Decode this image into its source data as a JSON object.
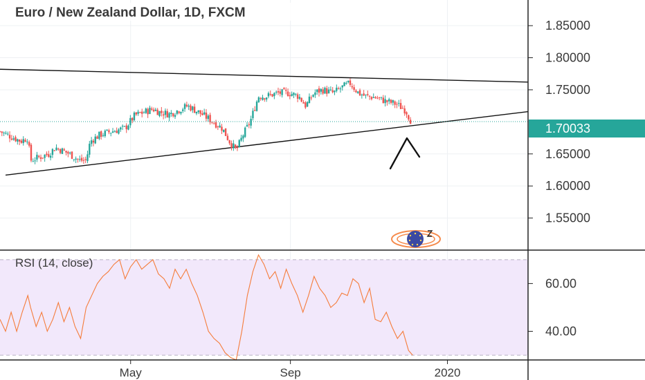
{
  "chart_data": [
    {
      "type": "candlestick",
      "title": "Euro / New Zealand Dollar, 1D, FXCM",
      "yticks": [
        "1.85000",
        "1.80000",
        "1.75000",
        "1.65000",
        "1.60000",
        "1.55000"
      ],
      "yticks_values": [
        1.85,
        1.8,
        1.75,
        1.65,
        1.6,
        1.55
      ],
      "ylim": [
        1.5,
        1.89
      ],
      "last_price": "1.70033",
      "last_price_value": 1.70033,
      "xticks": [
        "May",
        "Sep",
        "2020"
      ],
      "xticks_days": [
        94,
        209,
        322
      ],
      "xlim_days": [
        0,
        380
      ],
      "up_color": "#26a69a",
      "down_color": "#ef5350",
      "trendlines": [
        {
          "from": [
            0,
            1.782
          ],
          "to": [
            380,
            1.762
          ]
        },
        {
          "from": [
            4,
            1.617
          ],
          "to": [
            380,
            1.716
          ]
        }
      ],
      "close_path": [
        [
          0,
          1.685
        ],
        [
          15,
          1.67
        ],
        [
          20,
          1.675
        ],
        [
          22,
          1.64
        ],
        [
          35,
          1.65
        ],
        [
          40,
          1.66
        ],
        [
          50,
          1.65
        ],
        [
          57,
          1.64
        ],
        [
          62,
          1.64
        ],
        [
          65,
          1.67
        ],
        [
          72,
          1.68
        ],
        [
          80,
          1.685
        ],
        [
          90,
          1.69
        ],
        [
          97,
          1.71
        ],
        [
          110,
          1.72
        ],
        [
          115,
          1.715
        ],
        [
          122,
          1.712
        ],
        [
          130,
          1.72
        ],
        [
          135,
          1.725
        ],
        [
          143,
          1.715
        ],
        [
          150,
          1.705
        ],
        [
          160,
          1.69
        ],
        [
          165,
          1.67
        ],
        [
          170,
          1.655
        ],
        [
          175,
          1.68
        ],
        [
          180,
          1.7
        ],
        [
          186,
          1.74
        ],
        [
          192,
          1.74
        ],
        [
          200,
          1.745
        ],
        [
          208,
          1.745
        ],
        [
          215,
          1.74
        ],
        [
          220,
          1.725
        ],
        [
          226,
          1.745
        ],
        [
          232,
          1.75
        ],
        [
          240,
          1.745
        ],
        [
          247,
          1.755
        ],
        [
          252,
          1.76
        ],
        [
          258,
          1.745
        ],
        [
          263,
          1.74
        ],
        [
          270,
          1.738
        ],
        [
          278,
          1.732
        ],
        [
          285,
          1.728
        ],
        [
          292,
          1.718
        ],
        [
          296,
          1.7
        ]
      ]
    },
    {
      "type": "line",
      "title": "RSI (14, close)",
      "yticks": [
        "60.00",
        "40.00"
      ],
      "yticks_values": [
        60,
        40
      ],
      "ylim": [
        28,
        74
      ],
      "band": [
        30,
        70
      ],
      "line_color": "#f57c3a",
      "band_color": "#f2e8fb",
      "xlim_days": [
        0,
        380
      ],
      "values": [
        [
          0,
          45
        ],
        [
          4,
          40
        ],
        [
          8,
          48
        ],
        [
          12,
          40
        ],
        [
          16,
          48
        ],
        [
          20,
          55
        ],
        [
          22,
          50
        ],
        [
          26,
          42
        ],
        [
          30,
          48
        ],
        [
          34,
          40
        ],
        [
          38,
          45
        ],
        [
          42,
          52
        ],
        [
          46,
          44
        ],
        [
          50,
          50
        ],
        [
          54,
          42
        ],
        [
          58,
          37
        ],
        [
          62,
          50
        ],
        [
          66,
          55
        ],
        [
          70,
          60
        ],
        [
          74,
          63
        ],
        [
          78,
          65
        ],
        [
          82,
          68
        ],
        [
          86,
          70
        ],
        [
          90,
          62
        ],
        [
          94,
          67
        ],
        [
          98,
          70
        ],
        [
          102,
          66
        ],
        [
          106,
          68
        ],
        [
          110,
          70
        ],
        [
          114,
          64
        ],
        [
          118,
          62
        ],
        [
          122,
          58
        ],
        [
          126,
          66
        ],
        [
          130,
          62
        ],
        [
          134,
          66
        ],
        [
          138,
          60
        ],
        [
          142,
          55
        ],
        [
          146,
          48
        ],
        [
          150,
          40
        ],
        [
          154,
          37
        ],
        [
          158,
          35
        ],
        [
          162,
          31
        ],
        [
          166,
          29
        ],
        [
          170,
          28
        ],
        [
          174,
          40
        ],
        [
          178,
          55
        ],
        [
          182,
          65
        ],
        [
          186,
          72
        ],
        [
          190,
          68
        ],
        [
          194,
          62
        ],
        [
          198,
          65
        ],
        [
          202,
          58
        ],
        [
          206,
          66
        ],
        [
          210,
          60
        ],
        [
          214,
          55
        ],
        [
          218,
          48
        ],
        [
          222,
          55
        ],
        [
          226,
          63
        ],
        [
          230,
          58
        ],
        [
          234,
          55
        ],
        [
          238,
          50
        ],
        [
          242,
          52
        ],
        [
          246,
          56
        ],
        [
          250,
          55
        ],
        [
          254,
          62
        ],
        [
          258,
          60
        ],
        [
          262,
          52
        ],
        [
          266,
          58
        ],
        [
          270,
          45
        ],
        [
          274,
          44
        ],
        [
          278,
          48
        ],
        [
          282,
          42
        ],
        [
          286,
          37
        ],
        [
          290,
          40
        ],
        [
          294,
          32
        ],
        [
          297,
          30
        ]
      ]
    }
  ]
}
